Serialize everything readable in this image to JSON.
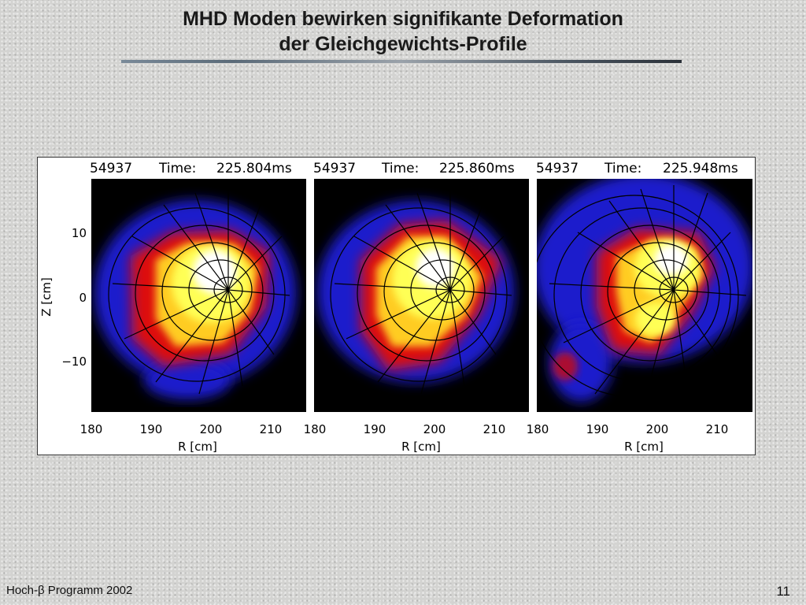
{
  "slide": {
    "title_line1": "MHD Moden bewirken signifikante Deformation",
    "title_line2": "der Gleichgewichts-Profile",
    "footer_left": "Hoch-β Programm 2002",
    "page_number": "11"
  },
  "figure": {
    "y_axis_label": "Z [cm]",
    "y_ticks": [
      "10",
      "0",
      "−10"
    ],
    "x_axis_label": "R [cm]",
    "x_ticks": [
      "180",
      "190",
      "200",
      "210"
    ],
    "panels": [
      {
        "shot": "54937",
        "time_label": "Time:",
        "time_value": "225.804ms"
      },
      {
        "shot": "54937",
        "time_label": "Time:",
        "time_value": "225.860ms"
      },
      {
        "shot": "54937",
        "time_label": "Time:",
        "time_value": "225.948ms"
      }
    ],
    "colors": {
      "plot_background": "#000000",
      "blue": "#2222dd",
      "red": "#dd1111",
      "yellow": "#ffff33",
      "white": "#ffffff"
    }
  }
}
